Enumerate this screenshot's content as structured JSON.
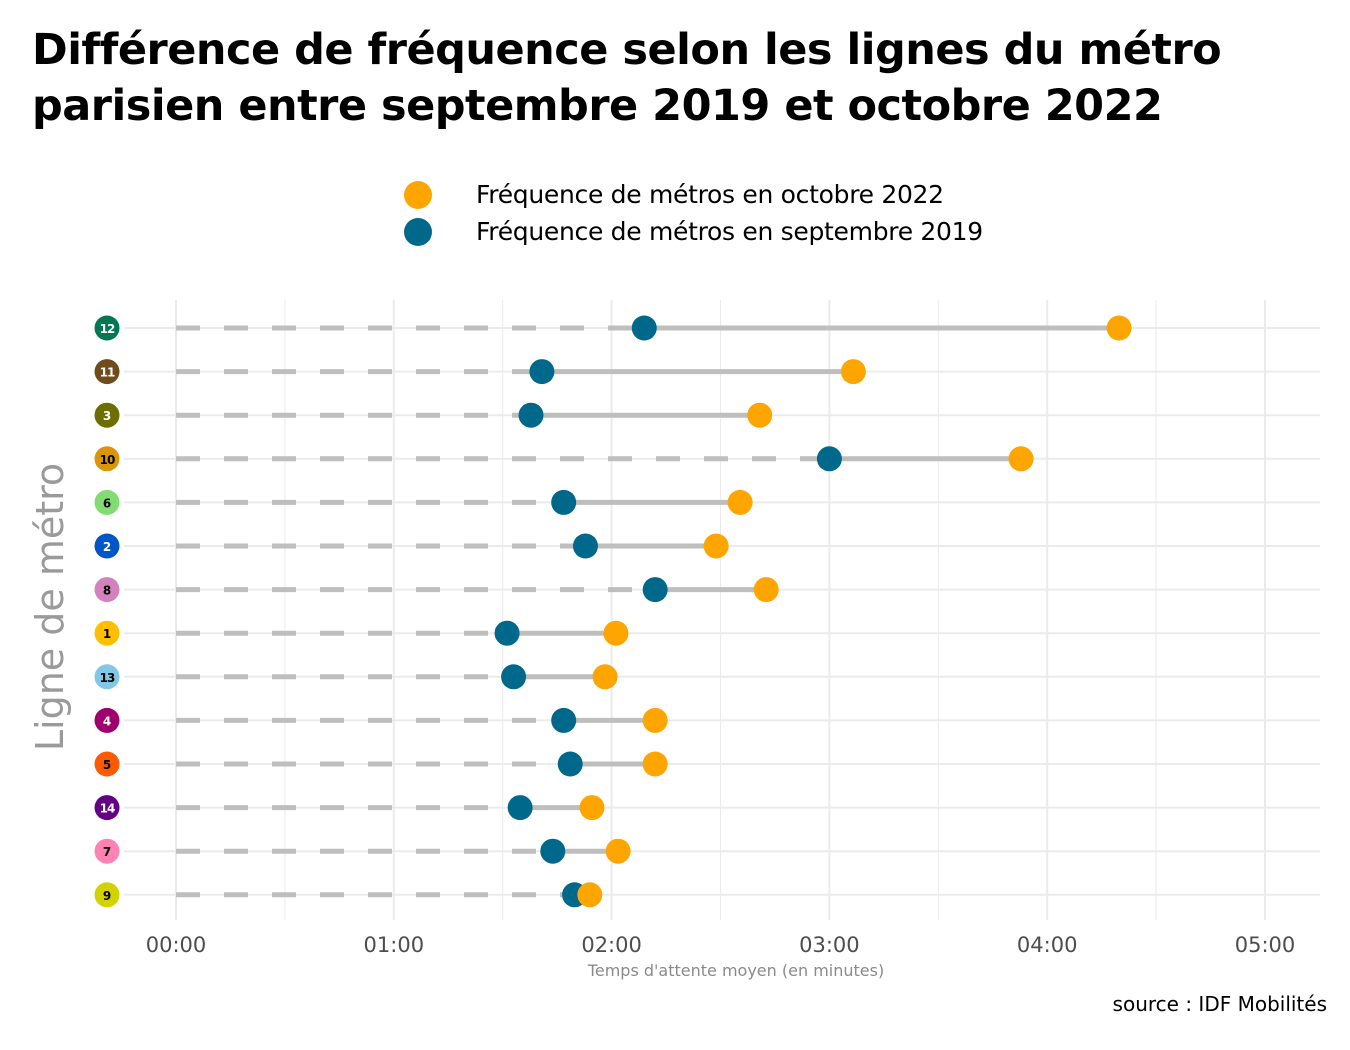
{
  "chart_data": {
    "type": "dumbbell",
    "title": "Différence de fréquence selon les lignes du métro parisien entre septembre 2019 et octobre 2022",
    "xlabel": "Temps d'attente moyen (en minutes)",
    "ylabel": "Ligne de métro",
    "source": "source : IDF Mobilités",
    "xlim": [
      0,
      5.2
    ],
    "x_ticks": [
      0,
      1,
      2,
      3,
      4,
      5
    ],
    "x_tick_labels": [
      "00:00",
      "01:00",
      "02:00",
      "03:00",
      "04:00",
      "05:00"
    ],
    "grid": true,
    "legend_position": "top",
    "legend": [
      {
        "name": "Fréquence de métros en octobre 2022",
        "color": "#FFA500"
      },
      {
        "name": "Fréquence de métros en septembre 2019",
        "color": "#00688B"
      }
    ],
    "categories": [
      "12",
      "11",
      "3",
      "10",
      "6",
      "2",
      "8",
      "1",
      "13",
      "4",
      "5",
      "14",
      "7",
      "9"
    ],
    "line_colors": {
      "12": {
        "bg": "#007852",
        "fg": "#ffffff"
      },
      "11": {
        "bg": "#704B1C",
        "fg": "#ffffff"
      },
      "3": {
        "bg": "#6E6E00",
        "fg": "#ffffff"
      },
      "10": {
        "bg": "#D9960B",
        "fg": "#000000"
      },
      "6": {
        "bg": "#83DC73",
        "fg": "#000000"
      },
      "2": {
        "bg": "#0055C8",
        "fg": "#ffffff"
      },
      "8": {
        "bg": "#D282BE",
        "fg": "#000000"
      },
      "1": {
        "bg": "#FFBE00",
        "fg": "#000000"
      },
      "13": {
        "bg": "#82C8E6",
        "fg": "#000000"
      },
      "4": {
        "bg": "#A0006E",
        "fg": "#ffffff"
      },
      "5": {
        "bg": "#FF5A00",
        "fg": "#000000"
      },
      "14": {
        "bg": "#640082",
        "fg": "#ffffff"
      },
      "7": {
        "bg": "#FF82B4",
        "fg": "#000000"
      },
      "9": {
        "bg": "#D2D200",
        "fg": "#000000"
      }
    },
    "series": [
      {
        "name": "Fréquence de métros en septembre 2019",
        "color": "#00688B",
        "values": [
          2.15,
          1.68,
          1.63,
          3.0,
          1.78,
          1.88,
          2.2,
          1.52,
          1.55,
          1.78,
          1.81,
          1.58,
          1.73,
          1.83
        ]
      },
      {
        "name": "Fréquence de métros en octobre 2022",
        "color": "#FFA500",
        "values": [
          4.33,
          3.11,
          2.68,
          3.88,
          2.59,
          2.48,
          2.71,
          2.02,
          1.97,
          2.2,
          2.2,
          1.91,
          2.03,
          1.9
        ]
      }
    ]
  }
}
